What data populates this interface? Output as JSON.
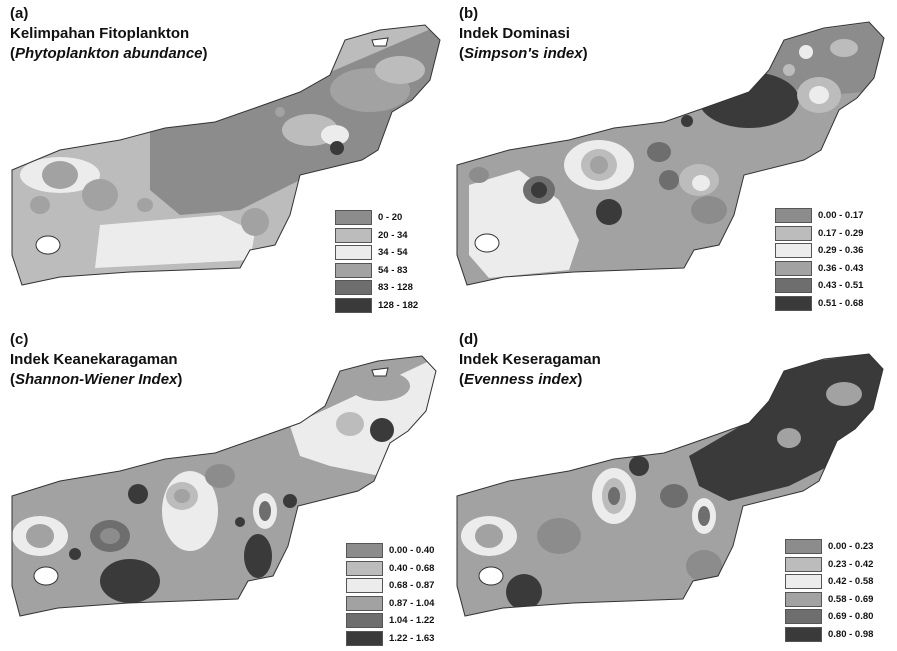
{
  "panels": [
    {
      "letter": "(a)",
      "title": "Kelimpahan Fitoplankton",
      "subtitle_en": "Phytoplankton abundance",
      "legend": [
        {
          "label": "0 - 20",
          "color": "#8c8c8c"
        },
        {
          "label": "20 - 34",
          "color": "#bcbcbc"
        },
        {
          "label": "34 - 54",
          "color": "#ececec"
        },
        {
          "label": "54 - 83",
          "color": "#a2a2a2"
        },
        {
          "label": "83 - 128",
          "color": "#6e6e6e"
        },
        {
          "label": "128 - 182",
          "color": "#3a3a3a"
        }
      ]
    },
    {
      "letter": "(b)",
      "title": "Indek Dominasi",
      "subtitle_en": "Simpson's index",
      "legend": [
        {
          "label": "0.00 - 0.17",
          "color": "#8c8c8c"
        },
        {
          "label": "0.17 - 0.29",
          "color": "#bcbcbc"
        },
        {
          "label": "0.29 - 0.36",
          "color": "#ececec"
        },
        {
          "label": "0.36 - 0.43",
          "color": "#a2a2a2"
        },
        {
          "label": "0.43 - 0.51",
          "color": "#6e6e6e"
        },
        {
          "label": "0.51 - 0.68",
          "color": "#3a3a3a"
        }
      ]
    },
    {
      "letter": "(c)",
      "title": "Indek Keanekaragaman",
      "subtitle_en": "Shannon-Wiener Index",
      "legend": [
        {
          "label": "0.00 - 0.40",
          "color": "#8c8c8c"
        },
        {
          "label": "0.40 - 0.68",
          "color": "#bcbcbc"
        },
        {
          "label": "0.68 - 0.87",
          "color": "#ececec"
        },
        {
          "label": "0.87 - 1.04",
          "color": "#a2a2a2"
        },
        {
          "label": "1.04 - 1.22",
          "color": "#6e6e6e"
        },
        {
          "label": "1.22 - 1.63",
          "color": "#3a3a3a"
        }
      ]
    },
    {
      "letter": "(d)",
      "title": "Indek Keseragaman",
      "subtitle_en": "Evenness index",
      "legend": [
        {
          "label": "0.00 - 0.23",
          "color": "#8c8c8c"
        },
        {
          "label": "0.23 - 0.42",
          "color": "#bcbcbc"
        },
        {
          "label": "0.42 - 0.58",
          "color": "#ececec"
        },
        {
          "label": "0.58 - 0.69",
          "color": "#a2a2a2"
        },
        {
          "label": "0.69 - 0.80",
          "color": "#6e6e6e"
        },
        {
          "label": "0.80 - 0.98",
          "color": "#3a3a3a"
        }
      ]
    }
  ]
}
